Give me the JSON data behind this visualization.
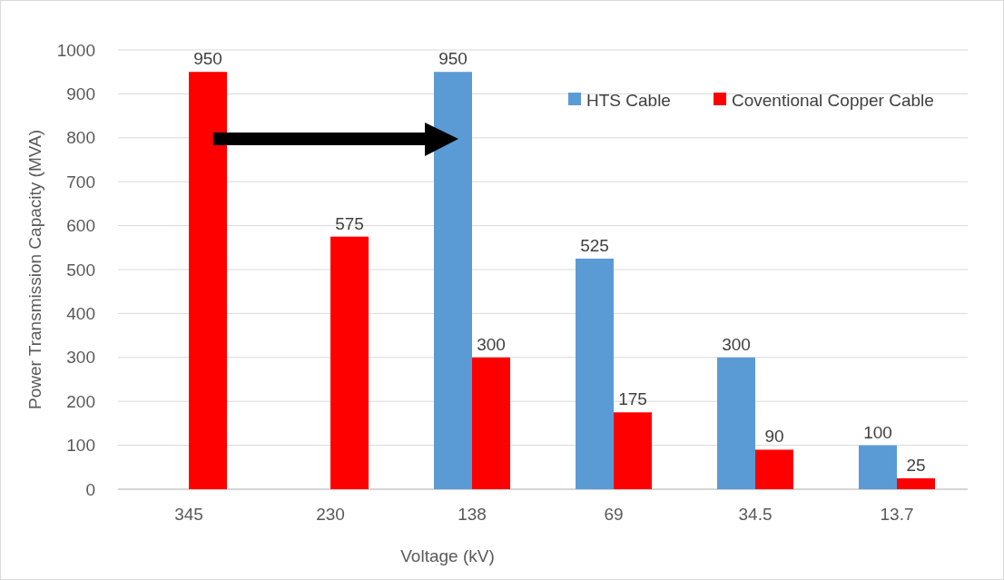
{
  "chart_data": {
    "type": "bar",
    "xlabel": "Voltage (kV)",
    "ylabel": "Power Transmission Capacity (MVA)",
    "categories": [
      "345",
      "230",
      "138",
      "69",
      "34.5",
      "13.7"
    ],
    "series": [
      {
        "name": "HTS Cable",
        "color": "#5b9bd5",
        "values": [
          null,
          null,
          950,
          525,
          300,
          100
        ]
      },
      {
        "name": "Coventional Copper Cable",
        "color": "#ff0000",
        "values": [
          950,
          575,
          300,
          175,
          90,
          25
        ]
      }
    ],
    "ylim": [
      0,
      1000
    ],
    "yticks": [
      0,
      100,
      200,
      300,
      400,
      500,
      600,
      700,
      800,
      900,
      1000
    ],
    "grid": "y",
    "legend": "top right",
    "data_labels": true
  }
}
